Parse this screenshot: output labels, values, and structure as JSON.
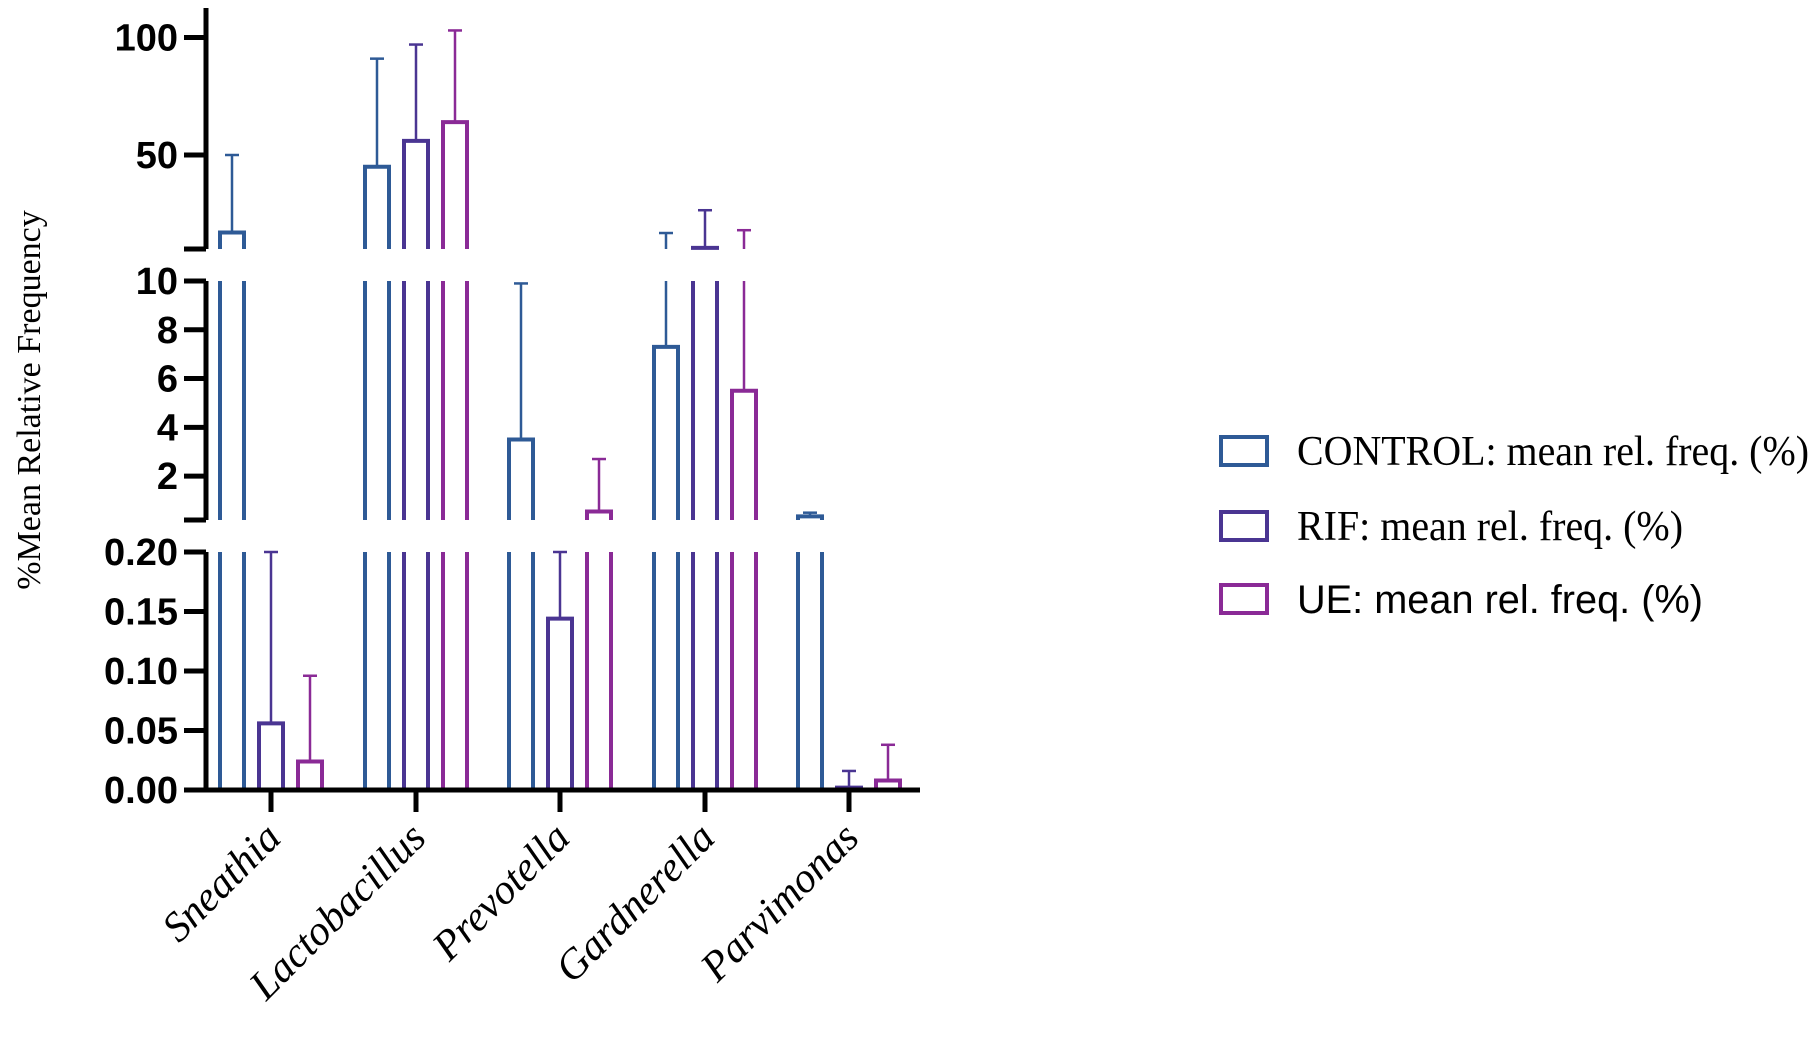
{
  "chart_data": {
    "type": "bar",
    "ylabel": "%Mean Relative Frequency",
    "categories": [
      "Sneathia",
      "Lactobacillus",
      "Prevotella",
      "Gardnerella",
      "Parvimonas"
    ],
    "axis_segments": [
      {
        "range": [
          0,
          0.2
        ],
        "ticks": [
          "0.00",
          "0.05",
          "0.10",
          "0.15",
          "0.20"
        ],
        "tick_values": [
          0,
          0.05,
          0.1,
          0.15,
          0.2
        ]
      },
      {
        "range": [
          0.2,
          10
        ],
        "ticks": [
          "2",
          "4",
          "6",
          "8",
          "10"
        ],
        "tick_values": [
          2,
          4,
          6,
          8,
          10
        ]
      },
      {
        "range": [
          10,
          130
        ],
        "ticks": [
          "50",
          "100"
        ],
        "tick_values": [
          50,
          100
        ]
      }
    ],
    "legend_position": "right",
    "series": [
      {
        "name": "CONTROL: mean rel. freq. (%)",
        "color": "#2e5a96",
        "values": [
          17,
          45,
          3.5,
          7.3,
          0.35
        ],
        "errors": [
          33,
          46,
          6.4,
          9.5,
          0.15
        ]
      },
      {
        "name": "RIF: mean rel. freq. (%)",
        "color": "#4a3592",
        "values": [
          0.056,
          56,
          0.144,
          10.5,
          0.002
        ],
        "errors": [
          0.144,
          41,
          0.056,
          16,
          0.014
        ]
      },
      {
        "name": "UE: mean rel. freq. (%)",
        "color": "#8a2a96",
        "values": [
          0.024,
          64,
          0.55,
          5.5,
          0.008
        ],
        "errors": [
          0.072,
          39,
          2.15,
          12.5,
          0.03
        ]
      }
    ]
  }
}
